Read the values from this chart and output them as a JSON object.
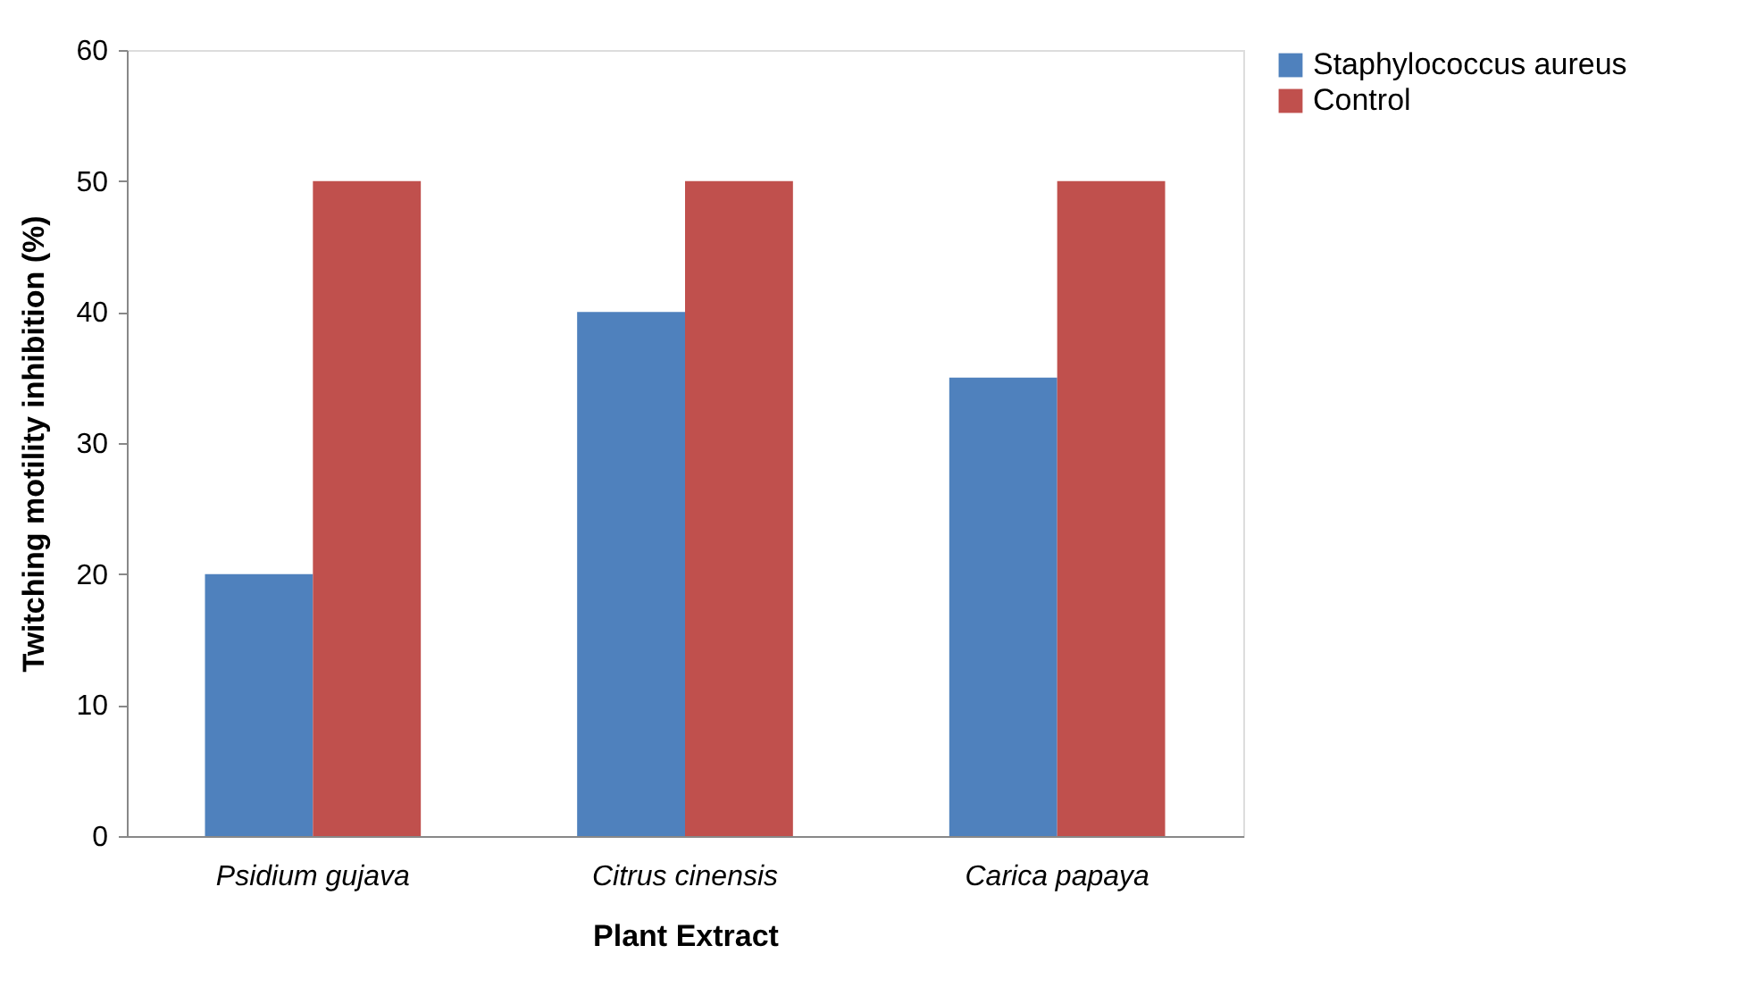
{
  "chart_data": {
    "type": "bar",
    "xlabel": "Plant Extract",
    "ylabel": "Twitching motility inhibition (%)",
    "categories": [
      "Psidium gujava",
      "Citrus cinensis",
      "Carica papaya"
    ],
    "series": [
      {
        "name": "Staphylococcus aureus",
        "color": "#4f81bd",
        "values": [
          20,
          40,
          35
        ]
      },
      {
        "name": "Control",
        "color": "#c0504d",
        "values": [
          50,
          50,
          50
        ]
      }
    ],
    "ylim": [
      0,
      60
    ],
    "yticks": [
      0,
      10,
      20,
      30,
      40,
      50,
      60
    ],
    "grid": false,
    "legend": "right"
  }
}
